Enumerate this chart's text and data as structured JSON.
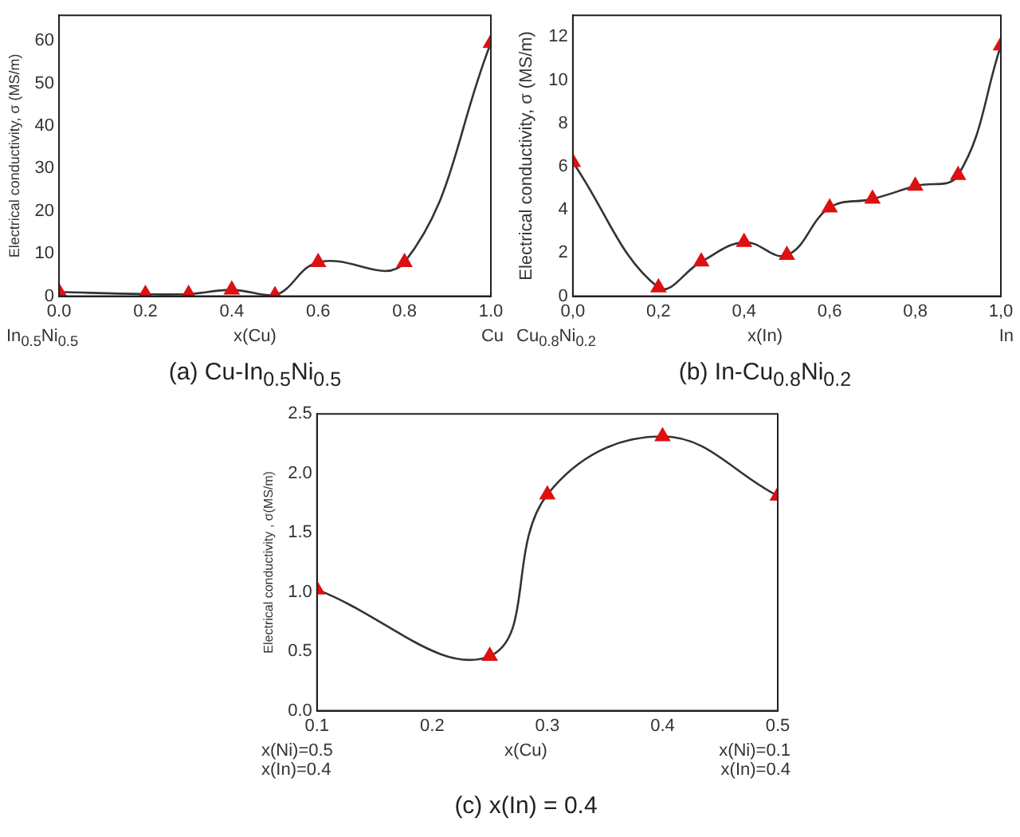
{
  "chart_data": [
    {
      "type": "scatter",
      "title": "(a) Cu-In$_{0.5}$Ni$_{0.5}$",
      "xlabel": "x(Cu)",
      "ylabel": "Electrical conductivity, σ (MS/m)",
      "annotations": [
        "In$_{0.5}$Ni$_{0.5}$",
        "Cu"
      ],
      "x": [
        0,
        0.2,
        0.3,
        0.4,
        0.5,
        0.6,
        0.8,
        1.0
      ],
      "grid": false,
      "legend": false,
      "series": [
        {
          "type": "line",
          "marker": "none",
          "color": "#333333",
          "values": [
            1,
            0.5,
            0.5,
            1.5,
            0.2,
            8,
            8,
            59.5
          ]
        },
        {
          "marker": "triangle",
          "color": "#dd1111",
          "values": [
            1,
            0.5,
            0.5,
            1.5,
            0.2,
            8,
            8,
            59.5
          ]
        }
      ],
      "xlim": [
        0,
        1
      ],
      "xticks": [
        {
          "value": 0,
          "label": "0.0"
        },
        0.2,
        0.4,
        0.6,
        0.8,
        {
          "value": 1,
          "label": "1.0"
        }
      ],
      "ylim": [
        0,
        66
      ],
      "yticks": [
        0,
        10,
        20,
        30,
        40,
        50,
        60
      ]
    },
    {
      "type": "scatter",
      "title": "(b) In-Cu$_{0.8}$Ni$_{0.2}$",
      "xlabel": "x(In)",
      "ylabel": "Electrical conductivity, σ (MS/m)",
      "annotations": [
        "Cu$_{0.8}$Ni$_{0.2}$",
        "In"
      ],
      "x": [
        0,
        0.2,
        0.3,
        0.4,
        0.5,
        0.6,
        0.7,
        0.8,
        0.9,
        1.0
      ],
      "grid": false,
      "legend": false,
      "series": [
        {
          "type": "line",
          "marker": "none",
          "color": "#333333",
          "values": [
            6.2,
            0.4,
            1.6,
            2.5,
            1.9,
            4.1,
            4.5,
            5.1,
            5.6,
            11.6
          ]
        },
        {
          "marker": "triangle",
          "color": "#dd1111",
          "values": [
            6.2,
            0.4,
            1.6,
            2.5,
            1.9,
            4.1,
            4.5,
            5.1,
            5.6,
            11.6
          ]
        }
      ],
      "xlim": [
        0,
        1
      ],
      "xticks": [
        {
          "value": 0,
          "label": "0,0"
        },
        {
          "value": 0.2,
          "label": "0,2"
        },
        {
          "value": 0.4,
          "label": "0,4"
        },
        {
          "value": 0.6,
          "label": "0,6"
        },
        {
          "value": 0.8,
          "label": "0,8"
        },
        {
          "value": 1,
          "label": "1,0"
        }
      ],
      "ylim": [
        0,
        13
      ],
      "yticks": [
        0,
        2,
        4,
        6,
        8,
        10,
        12
      ]
    },
    {
      "type": "scatter",
      "title": "(c) x(In) = 0.4",
      "xlabel": "x(Cu)",
      "ylabel": "Electrical conductivity , σ(MS/m)",
      "annotations": [
        "x(Ni)=0.5\nx(In)=0.4",
        "x(Ni)=0.1\nx(In)=0.4"
      ],
      "x": [
        0.1,
        0.25,
        0.3,
        0.4,
        0.5
      ],
      "grid": false,
      "legend": false,
      "series": [
        {
          "type": "line",
          "marker": "none",
          "color": "#333333",
          "values": [
            1.02,
            0.46,
            1.82,
            2.31,
            1.81
          ]
        },
        {
          "marker": "triangle",
          "color": "#dd1111",
          "values": [
            1.02,
            0.46,
            1.82,
            2.31,
            1.81
          ]
        }
      ],
      "xlim": [
        0.1,
        0.5
      ],
      "xticks": [
        0.1,
        0.2,
        0.3,
        0.4,
        0.5
      ],
      "ylim": [
        0,
        2.5
      ],
      "yticks": [
        {
          "value": 0,
          "label": "0.0"
        },
        0.5,
        {
          "value": 1,
          "label": "1.0"
        },
        1.5,
        {
          "value": 2,
          "label": "2.0"
        },
        2.5
      ]
    }
  ]
}
